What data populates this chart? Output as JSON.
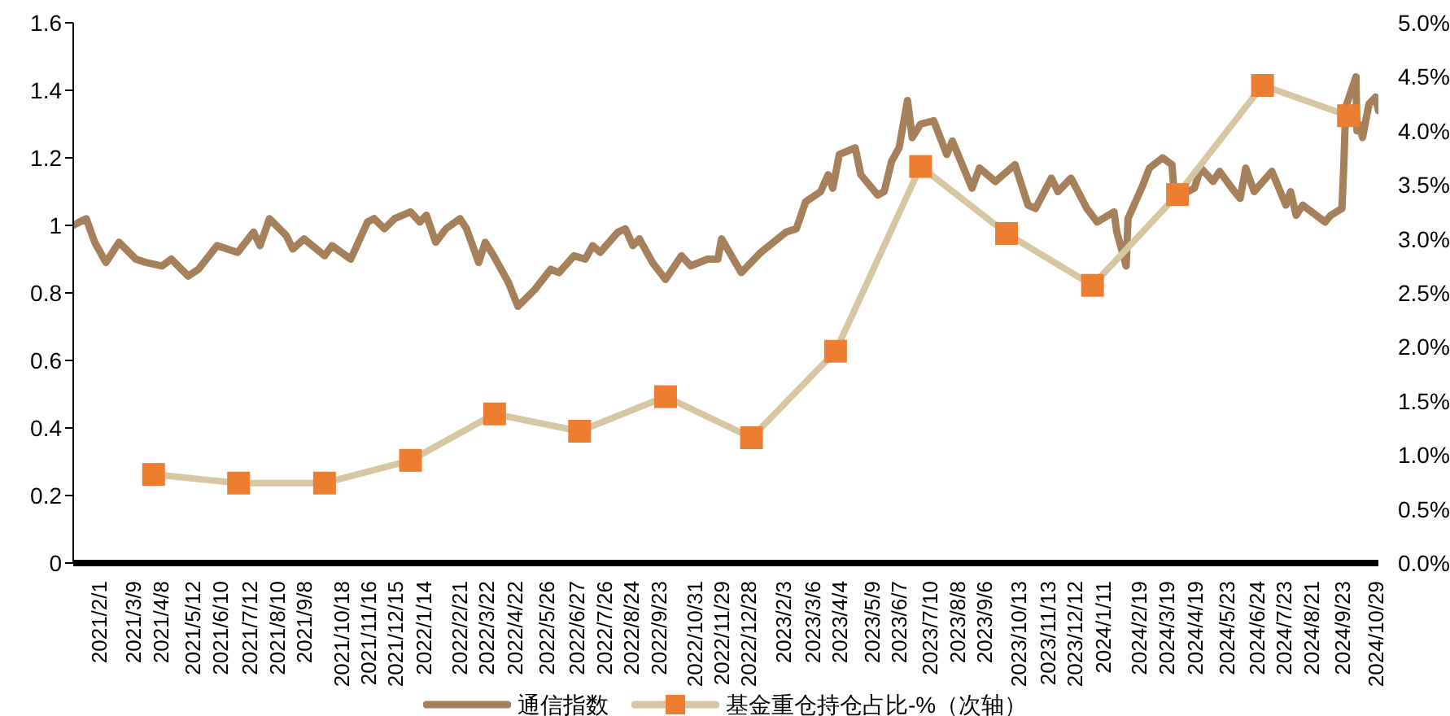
{
  "chart_data": {
    "type": "line",
    "legend": "bottom",
    "xlim": [
      "2021-01-04",
      "2024-11-01"
    ],
    "xticks": [
      {
        "value": "2021-02-01",
        "label": "2021/2/1"
      },
      {
        "value": "2021-03-09",
        "label": "2021/3/9"
      },
      {
        "value": "2021-04-08",
        "label": "2021/4/8"
      },
      {
        "value": "2021-05-12",
        "label": "2021/5/12"
      },
      {
        "value": "2021-06-10",
        "label": "2021/6/10"
      },
      {
        "value": "2021-07-12",
        "label": "2021/7/12"
      },
      {
        "value": "2021-08-10",
        "label": "2021/8/10"
      },
      {
        "value": "2021-09-08",
        "label": "2021/9/8"
      },
      {
        "value": "2021-10-18",
        "label": "2021/10/18"
      },
      {
        "value": "2021-11-16",
        "label": "2021/11/16"
      },
      {
        "value": "2021-12-15",
        "label": "2021/12/15"
      },
      {
        "value": "2022-01-14",
        "label": "2022/1/14"
      },
      {
        "value": "2022-02-21",
        "label": "2022/2/21"
      },
      {
        "value": "2022-03-22",
        "label": "2022/3/22"
      },
      {
        "value": "2022-04-22",
        "label": "2022/4/22"
      },
      {
        "value": "2022-05-26",
        "label": "2022/5/26"
      },
      {
        "value": "2022-06-27",
        "label": "2022/6/27"
      },
      {
        "value": "2022-07-26",
        "label": "2022/7/26"
      },
      {
        "value": "2022-08-24",
        "label": "2022/8/24"
      },
      {
        "value": "2022-09-23",
        "label": "2022/9/23"
      },
      {
        "value": "2022-10-31",
        "label": "2022/10/31"
      },
      {
        "value": "2022-11-29",
        "label": "2022/11/29"
      },
      {
        "value": "2022-12-28",
        "label": "2022/12/28"
      },
      {
        "value": "2023-02-03",
        "label": "2023/2/3"
      },
      {
        "value": "2023-03-06",
        "label": "2023/3/6"
      },
      {
        "value": "2023-04-04",
        "label": "2023/4/4"
      },
      {
        "value": "2023-05-09",
        "label": "2023/5/9"
      },
      {
        "value": "2023-06-07",
        "label": "2023/6/7"
      },
      {
        "value": "2023-07-10",
        "label": "2023/7/10"
      },
      {
        "value": "2023-08-08",
        "label": "2023/8/8"
      },
      {
        "value": "2023-09-06",
        "label": "2023/9/6"
      },
      {
        "value": "2023-10-13",
        "label": "2023/10/13"
      },
      {
        "value": "2023-11-13",
        "label": "2023/11/13"
      },
      {
        "value": "2023-12-12",
        "label": "2023/12/12"
      },
      {
        "value": "2024-01-11",
        "label": "2024/1/11"
      },
      {
        "value": "2024-02-19",
        "label": "2024/2/19"
      },
      {
        "value": "2024-03-19",
        "label": "2024/3/19"
      },
      {
        "value": "2024-04-19",
        "label": "2024/4/19"
      },
      {
        "value": "2024-05-23",
        "label": "2024/5/23"
      },
      {
        "value": "2024-06-24",
        "label": "2024/6/24"
      },
      {
        "value": "2024-07-23",
        "label": "2024/7/23"
      },
      {
        "value": "2024-08-21",
        "label": "2024/8/21"
      },
      {
        "value": "2024-09-23",
        "label": "2024/9/23"
      },
      {
        "value": "2024-10-29",
        "label": "2024/10/29"
      }
    ],
    "ylim": [
      0,
      1.6
    ],
    "yticks": [
      0,
      0.2,
      0.4,
      0.6,
      0.8,
      1,
      1.2,
      1.4,
      1.6
    ],
    "y2lim": [
      0,
      5
    ],
    "y2ticks": [
      {
        "value": 0,
        "label": "0.0%"
      },
      {
        "value": 0.5,
        "label": "0.5%"
      },
      {
        "value": 1,
        "label": "1.0%"
      },
      {
        "value": 1.5,
        "label": "1.5%"
      },
      {
        "value": 2,
        "label": "2.0%"
      },
      {
        "value": 2.5,
        "label": "2.5%"
      },
      {
        "value": 3,
        "label": "3.0%"
      },
      {
        "value": 3.5,
        "label": "3.5%"
      },
      {
        "value": 4,
        "label": "4.0%"
      },
      {
        "value": 4.5,
        "label": "4.5%"
      },
      {
        "value": 5,
        "label": "5.0%"
      }
    ],
    "series": [
      {
        "name": "通信指数",
        "color": "#a6805a",
        "x": [
          "2021-01-04",
          "2021-01-11",
          "2021-01-18",
          "2021-01-27",
          "2021-02-08",
          "2021-02-22",
          "2021-03-12",
          "2021-03-23",
          "2021-04-09",
          "2021-04-19",
          "2021-05-07",
          "2021-05-18",
          "2021-06-07",
          "2021-06-29",
          "2021-07-16",
          "2021-07-23",
          "2021-08-02",
          "2021-08-20",
          "2021-08-27",
          "2021-09-08",
          "2021-09-30",
          "2021-10-08",
          "2021-10-28",
          "2021-11-15",
          "2021-11-22",
          "2021-12-03",
          "2021-12-14",
          "2021-12-31",
          "2022-01-10",
          "2022-01-17",
          "2022-01-27",
          "2022-02-07",
          "2022-02-22",
          "2022-03-01",
          "2022-03-14",
          "2022-03-21",
          "2022-03-30",
          "2022-04-15",
          "2022-04-25",
          "2022-05-13",
          "2022-05-30",
          "2022-06-08",
          "2022-06-24",
          "2022-07-06",
          "2022-07-14",
          "2022-07-22",
          "2022-08-10",
          "2022-08-18",
          "2022-08-26",
          "2022-09-02",
          "2022-09-16",
          "2022-09-30",
          "2022-10-17",
          "2022-10-27",
          "2022-11-14",
          "2022-11-25",
          "2022-11-29",
          "2022-12-20",
          "2023-01-10",
          "2023-02-06",
          "2023-02-17",
          "2023-02-27",
          "2023-03-15",
          "2023-03-23",
          "2023-03-28",
          "2023-04-04",
          "2023-04-21",
          "2023-04-27",
          "2023-05-15",
          "2023-05-22",
          "2023-05-30",
          "2023-06-07",
          "2023-06-16",
          "2023-06-21",
          "2023-06-30",
          "2023-07-14",
          "2023-07-28",
          "2023-08-03",
          "2023-08-24",
          "2023-09-01",
          "2023-09-18",
          "2023-10-09",
          "2023-10-23",
          "2023-10-31",
          "2023-11-17",
          "2023-11-24",
          "2023-12-08",
          "2023-12-25",
          "2024-01-05",
          "2024-01-23",
          "2024-01-26",
          "2024-02-05",
          "2024-02-07",
          "2024-02-23",
          "2024-03-01",
          "2024-03-15",
          "2024-03-25",
          "2024-03-28",
          "2024-04-18",
          "2024-04-25",
          "2024-05-08",
          "2024-05-15",
          "2024-05-31",
          "2024-06-06",
          "2024-06-12",
          "2024-06-21",
          "2024-07-10",
          "2024-07-25",
          "2024-07-30",
          "2024-08-05",
          "2024-08-12",
          "2024-09-05",
          "2024-09-11",
          "2024-09-23",
          "2024-09-25",
          "2024-09-27",
          "2024-10-08",
          "2024-10-09",
          "2024-10-11",
          "2024-10-15",
          "2024-10-22",
          "2024-10-29",
          "2024-11-01"
        ],
        "values": [
          1.0,
          1.01,
          1.02,
          0.95,
          0.89,
          0.95,
          0.9,
          0.89,
          0.88,
          0.9,
          0.85,
          0.87,
          0.94,
          0.92,
          0.98,
          0.94,
          1.02,
          0.97,
          0.93,
          0.96,
          0.91,
          0.94,
          0.9,
          1.01,
          1.02,
          0.99,
          1.02,
          1.04,
          1.01,
          1.03,
          0.95,
          0.99,
          1.02,
          0.99,
          0.89,
          0.95,
          0.91,
          0.83,
          0.76,
          0.81,
          0.87,
          0.86,
          0.91,
          0.9,
          0.94,
          0.92,
          0.98,
          0.99,
          0.94,
          0.96,
          0.89,
          0.84,
          0.91,
          0.88,
          0.9,
          0.9,
          0.96,
          0.86,
          0.92,
          0.98,
          0.99,
          1.07,
          1.1,
          1.15,
          1.11,
          1.21,
          1.23,
          1.15,
          1.09,
          1.1,
          1.19,
          1.23,
          1.37,
          1.26,
          1.3,
          1.31,
          1.21,
          1.25,
          1.11,
          1.17,
          1.13,
          1.18,
          1.06,
          1.05,
          1.14,
          1.1,
          1.14,
          1.05,
          1.01,
          1.04,
          0.98,
          0.88,
          1.02,
          1.12,
          1.17,
          1.2,
          1.18,
          1.08,
          1.11,
          1.17,
          1.13,
          1.16,
          1.1,
          1.08,
          1.17,
          1.1,
          1.16,
          1.06,
          1.1,
          1.03,
          1.06,
          1.01,
          1.03,
          1.05,
          1.18,
          1.35,
          1.44,
          1.28,
          1.3,
          1.26,
          1.36,
          1.38,
          1.34
        ]
      },
      {
        "name": "基金重仓持仓占比-%（次轴）",
        "color": "#d6c6a2",
        "axis": "y2",
        "marker": "square",
        "colors": [
          "#ed7d31",
          "#ed7d31",
          "#ed7d31",
          "#ed7d31",
          "#ed7d31",
          "#ed7d31",
          "#ed7d31",
          "#ed7d31",
          "#ed7d31",
          "#ed7d31",
          "#ed7d31",
          "#ed7d31",
          "#ed7d31",
          "#ed7d31",
          "#ed7d31"
        ],
        "x": [
          "2021-03-31",
          "2021-06-30",
          "2021-09-30",
          "2021-12-31",
          "2022-03-31",
          "2022-06-30",
          "2022-09-30",
          "2022-12-31",
          "2023-03-31",
          "2023-06-30",
          "2023-09-30",
          "2023-12-31",
          "2024-03-31",
          "2024-06-30",
          "2024-09-30"
        ],
        "values": [
          0.82,
          0.74,
          0.74,
          0.95,
          1.38,
          1.22,
          1.54,
          1.16,
          1.96,
          3.67,
          3.05,
          2.57,
          3.41,
          4.42,
          4.14
        ]
      }
    ]
  }
}
